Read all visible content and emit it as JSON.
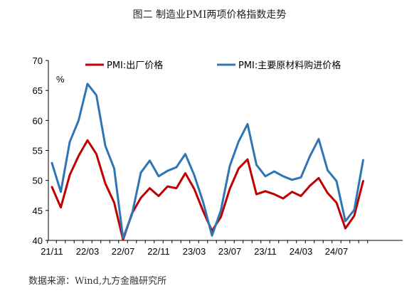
{
  "title": "图二  制造业PMI两项价格指数走势",
  "source": "数据来源：Wind,九方金融研究所",
  "chart_data": {
    "type": "line",
    "ylabel": "%",
    "ylim": [
      40,
      70
    ],
    "yticks": [
      40,
      45,
      50,
      55,
      60,
      65,
      70
    ],
    "xtick_labels": [
      "21/11",
      "22/03",
      "22/07",
      "22/11",
      "23/03",
      "23/07",
      "23/11",
      "24/03",
      "24/07"
    ],
    "x": [
      "21/11",
      "21/12",
      "22/01",
      "22/02",
      "22/03",
      "22/04",
      "22/05",
      "22/06",
      "22/07",
      "22/08",
      "22/09",
      "22/10",
      "22/11",
      "22/12",
      "23/01",
      "23/02",
      "23/03",
      "23/04",
      "23/05",
      "23/06",
      "23/07",
      "23/08",
      "23/09",
      "23/10",
      "23/11",
      "23/12",
      "24/01",
      "24/02",
      "24/03",
      "24/04",
      "24/05",
      "24/06",
      "24/07",
      "24/08",
      "24/09",
      "24/10"
    ],
    "legend_position": "top",
    "grid": false,
    "series": [
      {
        "name": "PMI:出厂价格",
        "color": "#c00000",
        "values": [
          48.9,
          45.5,
          50.9,
          54.1,
          56.7,
          54.4,
          49.5,
          46.3,
          40.1,
          44.5,
          47.1,
          48.7,
          47.4,
          49.0,
          48.7,
          51.2,
          48.6,
          44.9,
          41.6,
          43.9,
          48.6,
          52.0,
          53.5,
          47.7,
          48.2,
          47.7,
          47.0,
          48.1,
          47.4,
          49.1,
          50.4,
          47.9,
          46.3,
          42.0,
          44.1,
          49.9
        ]
      },
      {
        "name": "PMI:主要原材料购进价格",
        "color": "#2e75b6",
        "values": [
          52.9,
          48.1,
          56.4,
          60.0,
          66.1,
          64.2,
          55.8,
          52.0,
          40.4,
          44.3,
          51.3,
          53.3,
          50.7,
          51.6,
          52.2,
          54.4,
          50.9,
          46.4,
          40.8,
          45.0,
          52.4,
          56.5,
          59.4,
          52.6,
          50.7,
          51.5,
          50.7,
          50.1,
          50.5,
          54.0,
          56.9,
          51.7,
          49.9,
          43.2,
          45.1,
          53.4
        ]
      }
    ]
  }
}
